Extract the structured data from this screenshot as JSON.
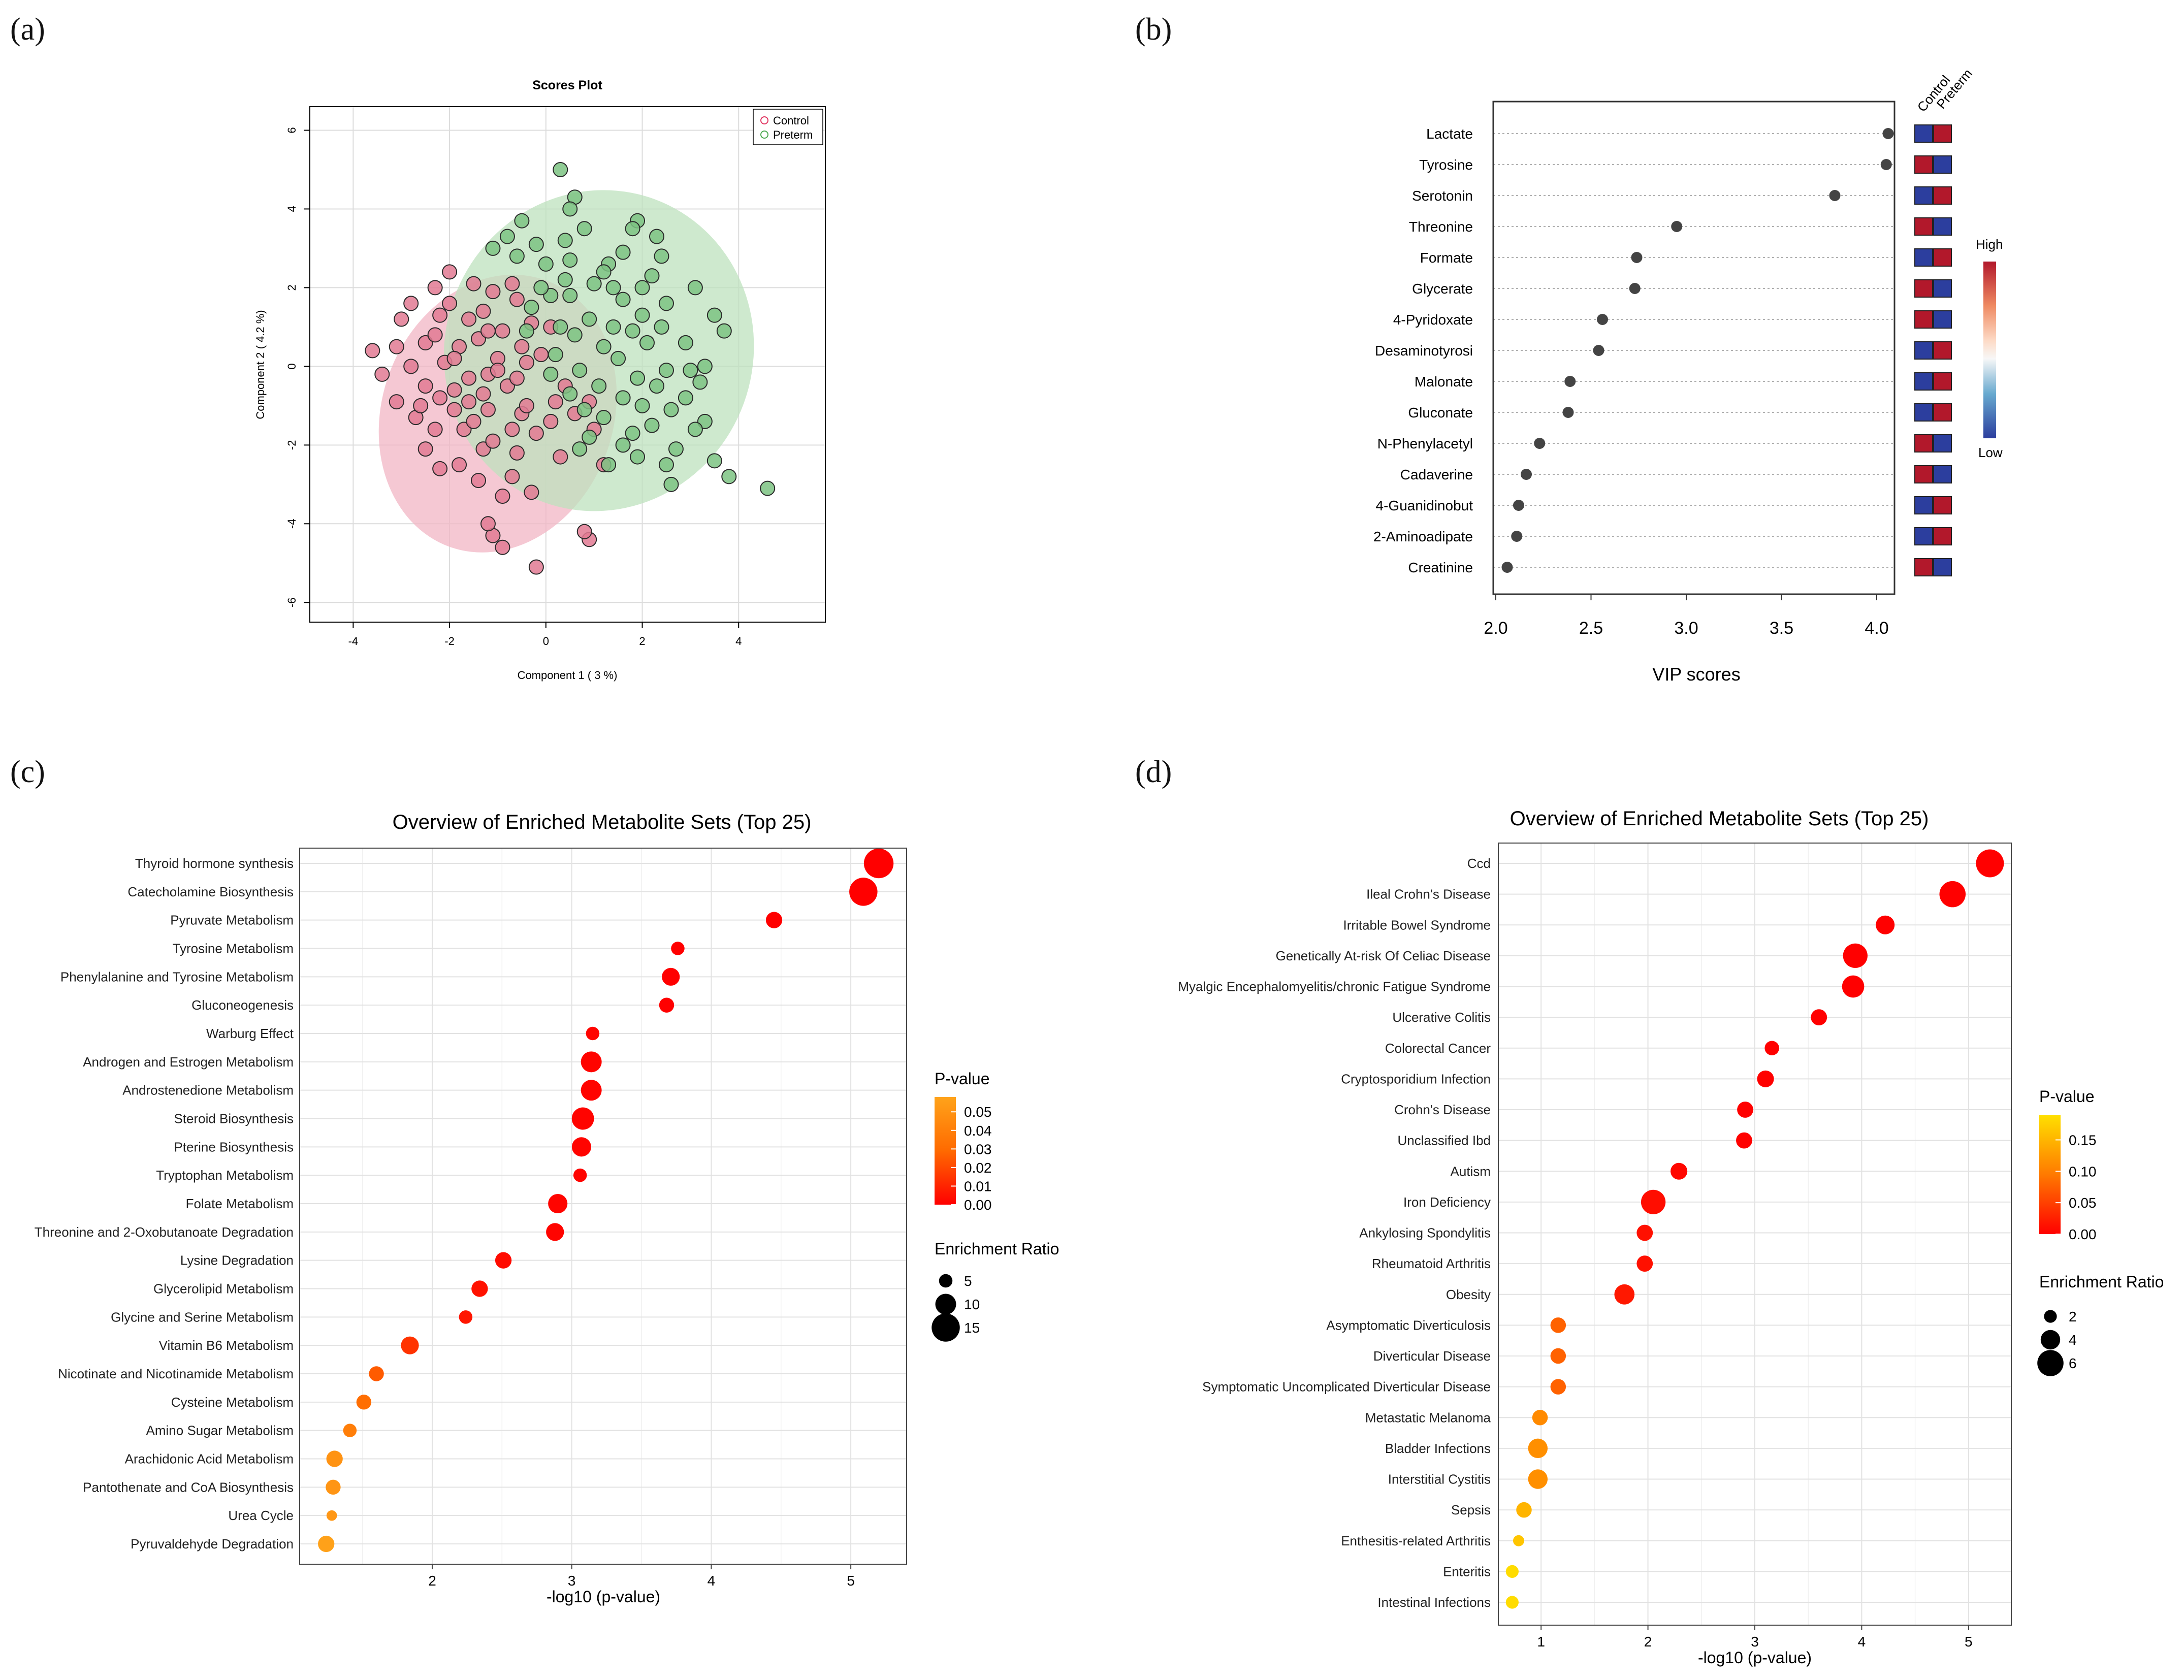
{
  "panel_labels": {
    "a": "(a)",
    "b": "(b)",
    "c": "(c)",
    "d": "(d)"
  },
  "colors": {
    "control_fill": "#e27a93",
    "control_ellipse": "#f2b6c4",
    "control_marker": "#e0325e",
    "preterm_fill": "#7cc383",
    "preterm_ellipse": "#bde2bd",
    "preterm_marker": "#4aa84e",
    "vip_point": "#444444",
    "heat_high": "#b2182b",
    "heat_low": "#2c3e9e",
    "grid": "#dcdcdc",
    "axis": "#000000"
  },
  "chart_data": [
    {
      "id": "a",
      "type": "scatter",
      "title": "Scores Plot",
      "xlabel": "Component 1 ( 3 %)",
      "ylabel": "Component 2 ( 4.2 %)",
      "xlim": [
        -4.9,
        5.8
      ],
      "ylim": [
        -6.5,
        6.6
      ],
      "xticks": [
        -4,
        -2,
        0,
        2,
        4
      ],
      "yticks": [
        -6,
        -4,
        -2,
        0,
        2,
        4,
        6
      ],
      "legend": [
        "Control",
        "Preterm"
      ],
      "ellipses": [
        {
          "group": "Control",
          "center": [
            -1.0,
            -1.2
          ],
          "semi_axes": [
            3.6,
            2.4
          ],
          "angle": 70
        },
        {
          "group": "Preterm",
          "center": [
            1.1,
            0.4
          ],
          "semi_axes": [
            4.1,
            3.2
          ],
          "angle": 70
        }
      ],
      "series": [
        {
          "name": "Control",
          "points": [
            [
              -0.2,
              -5.1
            ],
            [
              -0.9,
              -4.6
            ],
            [
              -1.1,
              -4.3
            ],
            [
              -1.2,
              -4.0
            ],
            [
              0.9,
              -4.4
            ],
            [
              0.8,
              -4.2
            ],
            [
              -0.9,
              -3.3
            ],
            [
              -0.3,
              -3.2
            ],
            [
              -1.4,
              -2.9
            ],
            [
              -2.2,
              -2.6
            ],
            [
              -0.7,
              -2.8
            ],
            [
              -1.8,
              -2.5
            ],
            [
              -0.6,
              -2.2
            ],
            [
              -1.3,
              -2.1
            ],
            [
              0.3,
              -2.3
            ],
            [
              1.2,
              -2.5
            ],
            [
              -2.5,
              -2.1
            ],
            [
              -1.1,
              -1.9
            ],
            [
              -1.7,
              -1.6
            ],
            [
              -2.3,
              -1.6
            ],
            [
              -0.7,
              -1.6
            ],
            [
              -1.5,
              -1.4
            ],
            [
              -0.2,
              -1.7
            ],
            [
              0.1,
              -1.4
            ],
            [
              -2.7,
              -1.3
            ],
            [
              -1.9,
              -1.1
            ],
            [
              -1.2,
              -1.1
            ],
            [
              -0.5,
              -1.2
            ],
            [
              -1.6,
              -0.9
            ],
            [
              -2.2,
              -0.8
            ],
            [
              -0.4,
              -1.0
            ],
            [
              -3.1,
              -0.9
            ],
            [
              -1.9,
              -0.6
            ],
            [
              -1.3,
              -0.7
            ],
            [
              -2.5,
              -0.5
            ],
            [
              -0.8,
              -0.5
            ],
            [
              -3.4,
              -0.2
            ],
            [
              -1.6,
              -0.3
            ],
            [
              -2.8,
              0.0
            ],
            [
              -1.2,
              -0.2
            ],
            [
              -0.6,
              -0.3
            ],
            [
              -3.6,
              0.4
            ],
            [
              -2.1,
              0.1
            ],
            [
              -1.0,
              0.2
            ],
            [
              -3.1,
              0.5
            ],
            [
              -2.5,
              0.6
            ],
            [
              -1.8,
              0.5
            ],
            [
              -0.5,
              0.5
            ],
            [
              -2.3,
              0.8
            ],
            [
              -1.4,
              0.7
            ],
            [
              -0.9,
              0.9
            ],
            [
              -3.0,
              1.2
            ],
            [
              -2.2,
              1.3
            ],
            [
              -1.6,
              1.2
            ],
            [
              -0.3,
              1.1
            ],
            [
              -2.8,
              1.6
            ],
            [
              -2.0,
              1.6
            ],
            [
              -1.3,
              1.4
            ],
            [
              -0.6,
              1.7
            ],
            [
              -2.3,
              2.0
            ],
            [
              -1.1,
              1.9
            ],
            [
              -2.0,
              2.4
            ],
            [
              -0.7,
              2.1
            ],
            [
              -1.5,
              2.1
            ],
            [
              0.1,
              1.0
            ],
            [
              -0.1,
              0.3
            ],
            [
              0.4,
              -0.5
            ],
            [
              0.6,
              -1.2
            ],
            [
              0.9,
              -0.9
            ],
            [
              1.0,
              -1.6
            ],
            [
              0.2,
              -0.9
            ],
            [
              -1.0,
              -0.1
            ],
            [
              -1.9,
              0.2
            ],
            [
              -2.6,
              -1.0
            ],
            [
              -0.4,
              0.1
            ],
            [
              -1.2,
              0.9
            ]
          ]
        },
        {
          "name": "Preterm",
          "points": [
            [
              0.3,
              5.0
            ],
            [
              0.6,
              4.3
            ],
            [
              0.5,
              4.0
            ],
            [
              -0.5,
              3.7
            ],
            [
              -0.8,
              3.3
            ],
            [
              1.9,
              3.7
            ],
            [
              1.8,
              3.5
            ],
            [
              2.3,
              3.3
            ],
            [
              -1.1,
              3.0
            ],
            [
              0.4,
              3.2
            ],
            [
              -0.2,
              3.1
            ],
            [
              1.6,
              2.9
            ],
            [
              2.4,
              2.8
            ],
            [
              -0.6,
              2.8
            ],
            [
              0.5,
              2.7
            ],
            [
              1.3,
              2.6
            ],
            [
              0.0,
              2.6
            ],
            [
              1.2,
              2.4
            ],
            [
              3.1,
              2.0
            ],
            [
              2.0,
              2.0
            ],
            [
              1.4,
              2.0
            ],
            [
              0.1,
              1.8
            ],
            [
              0.5,
              1.8
            ],
            [
              1.6,
              1.7
            ],
            [
              2.5,
              1.6
            ],
            [
              3.5,
              1.3
            ],
            [
              2.0,
              1.3
            ],
            [
              0.9,
              1.2
            ],
            [
              3.7,
              0.9
            ],
            [
              0.3,
              1.0
            ],
            [
              1.8,
              0.9
            ],
            [
              2.9,
              0.6
            ],
            [
              0.6,
              0.8
            ],
            [
              1.2,
              0.5
            ],
            [
              2.1,
              0.6
            ],
            [
              0.2,
              0.3
            ],
            [
              1.5,
              0.2
            ],
            [
              3.3,
              0.0
            ],
            [
              2.5,
              -0.1
            ],
            [
              0.7,
              -0.1
            ],
            [
              1.9,
              -0.3
            ],
            [
              3.2,
              -0.4
            ],
            [
              1.1,
              -0.5
            ],
            [
              2.3,
              -0.5
            ],
            [
              0.5,
              -0.7
            ],
            [
              1.6,
              -0.8
            ],
            [
              2.9,
              -0.8
            ],
            [
              2.0,
              -1.0
            ],
            [
              0.8,
              -1.1
            ],
            [
              2.6,
              -1.1
            ],
            [
              1.2,
              -1.3
            ],
            [
              3.3,
              -1.4
            ],
            [
              2.2,
              -1.5
            ],
            [
              1.8,
              -1.7
            ],
            [
              3.1,
              -1.6
            ],
            [
              0.9,
              -1.8
            ],
            [
              2.7,
              -2.1
            ],
            [
              1.6,
              -2.0
            ],
            [
              3.5,
              -2.4
            ],
            [
              2.5,
              -2.5
            ],
            [
              3.8,
              -2.8
            ],
            [
              2.6,
              -3.0
            ],
            [
              4.6,
              -3.1
            ],
            [
              1.3,
              -2.5
            ],
            [
              0.7,
              -2.1
            ],
            [
              -0.3,
              1.5
            ],
            [
              1.0,
              2.1
            ],
            [
              2.2,
              2.3
            ],
            [
              0.8,
              3.5
            ],
            [
              1.4,
              1.0
            ],
            [
              0.1,
              -0.2
            ],
            [
              2.4,
              1.0
            ],
            [
              -0.1,
              2.0
            ],
            [
              3.0,
              -0.1
            ],
            [
              1.9,
              -2.3
            ],
            [
              -0.4,
              0.9
            ],
            [
              0.4,
              2.2
            ]
          ]
        }
      ]
    },
    {
      "id": "b",
      "type": "dot",
      "xlabel": "VIP scores",
      "xlim": [
        2.0,
        4.0
      ],
      "xticks": [
        2.0,
        2.5,
        3.0,
        3.5,
        4.0
      ],
      "categories": [
        "Lactate",
        "Tyrosine",
        "Serotonin",
        "Threonine",
        "Formate",
        "Glycerate",
        "4-Pyridoxate",
        "Desaminotyrosi",
        "Malonate",
        "Gluconate",
        "N-Phenylacetyl",
        "Cadaverine",
        "4-Guanidinobut",
        "2-Aminoadipate",
        "Creatinine"
      ],
      "values": [
        4.06,
        4.05,
        3.78,
        2.95,
        2.74,
        2.73,
        2.56,
        2.54,
        2.39,
        2.38,
        2.23,
        2.16,
        2.12,
        2.11,
        2.06
      ],
      "heatmap_columns": [
        "Control",
        "Preterm"
      ],
      "heatmap": [
        [
          "low",
          "high"
        ],
        [
          "high",
          "low"
        ],
        [
          "low",
          "high"
        ],
        [
          "high",
          "low"
        ],
        [
          "low",
          "high"
        ],
        [
          "high",
          "low"
        ],
        [
          "high",
          "low"
        ],
        [
          "low",
          "high"
        ],
        [
          "low",
          "high"
        ],
        [
          "low",
          "high"
        ],
        [
          "high",
          "low"
        ],
        [
          "high",
          "low"
        ],
        [
          "low",
          "high"
        ],
        [
          "low",
          "high"
        ],
        [
          "high",
          "low"
        ]
      ],
      "colorbar": {
        "high": "High",
        "low": "Low"
      }
    },
    {
      "id": "c",
      "type": "dot",
      "title": "Overview of Enriched Metabolite Sets (Top 25)",
      "xlabel": "-log10 (p-value)",
      "xlim": [
        1.05,
        5.4
      ],
      "xticks": [
        2,
        3,
        4,
        5
      ],
      "categories": [
        "Thyroid hormone synthesis",
        "Catecholamine Biosynthesis",
        "Pyruvate Metabolism",
        "Tyrosine Metabolism",
        "Phenylalanine and Tyrosine Metabolism",
        "Gluconeogenesis",
        "Warburg Effect",
        "Androgen and Estrogen Metabolism",
        "Androstenedione Metabolism",
        "Steroid Biosynthesis",
        "Pterine Biosynthesis",
        "Tryptophan Metabolism",
        "Folate Metabolism",
        "Threonine and 2-Oxobutanoate Degradation",
        "Lysine Degradation",
        "Glycerolipid Metabolism",
        "Glycine and Serine Metabolism",
        "Vitamin B6 Metabolism",
        "Nicotinate and Nicotinamide Metabolism",
        "Cysteine Metabolism",
        "Amino Sugar Metabolism",
        "Arachidonic Acid Metabolism",
        "Pantothenate and CoA Biosynthesis",
        "Urea Cycle",
        "Pyruvaldehyde Degradation"
      ],
      "x": [
        5.2,
        5.09,
        4.45,
        3.76,
        3.71,
        3.68,
        3.15,
        3.14,
        3.14,
        3.08,
        3.07,
        3.06,
        2.9,
        2.88,
        2.51,
        2.34,
        2.24,
        1.84,
        1.6,
        1.51,
        1.41,
        1.3,
        1.29,
        1.28,
        1.24
      ],
      "enrichment_ratio": [
        16,
        15,
        7,
        5,
        8,
        6,
        5,
        10,
        10,
        11,
        9,
        5,
        9,
        8,
        7,
        7,
        5,
        8,
        6,
        6,
        5,
        7,
        6,
        3,
        7
      ],
      "p_value": [
        0.0,
        0.0,
        0.0,
        0.0,
        0.0,
        0.0,
        0.001,
        0.001,
        0.001,
        0.001,
        0.001,
        0.001,
        0.001,
        0.001,
        0.003,
        0.005,
        0.006,
        0.014,
        0.025,
        0.031,
        0.039,
        0.05,
        0.051,
        0.052,
        0.057
      ],
      "legend": {
        "color_title": "P-value",
        "color_ticks": [
          "0.05",
          "0.04",
          "0.03",
          "0.02",
          "0.01",
          "0.00"
        ],
        "size_title": "Enrichment Ratio",
        "size_ticks": [
          "5",
          "10",
          "15"
        ]
      }
    },
    {
      "id": "d",
      "type": "dot",
      "title": "Overview of Enriched Metabolite Sets (Top 25)",
      "xlabel": "-log10 (p-value)",
      "xlim": [
        0.6,
        5.4
      ],
      "xticks": [
        1,
        2,
        3,
        4,
        5
      ],
      "categories": [
        "Ccd",
        "Ileal Crohn's Disease",
        "Irritable Bowel Syndrome",
        "Genetically At-risk Of Celiac Disease",
        "Myalgic Encephalomyelitis/chronic Fatigue Syndrome",
        "Ulcerative Colitis",
        "Colorectal Cancer",
        "Cryptosporidium Infection",
        "Crohn's Disease",
        "Unclassified Ibd",
        "Autism",
        "Iron Deficiency",
        "Ankylosing Spondylitis",
        "Rheumatoid Arthritis",
        "Obesity",
        "Asymptomatic Diverticulosis",
        "Diverticular Disease",
        "Symptomatic Uncomplicated Diverticular Disease",
        "Metastatic Melanoma",
        "Bladder Infections",
        "Interstitial Cystitis",
        "Sepsis",
        "Enthesitis-related Arthritis",
        "Enteritis",
        "Intestinal Infections"
      ],
      "x": [
        5.2,
        4.85,
        4.22,
        3.94,
        3.92,
        3.6,
        3.16,
        3.1,
        2.91,
        2.9,
        2.29,
        2.05,
        1.97,
        1.97,
        1.78,
        1.16,
        1.16,
        1.16,
        0.99,
        0.97,
        0.97,
        0.84,
        0.79,
        0.73,
        0.73
      ],
      "enrichment_ratio": [
        6.5,
        6.0,
        3.8,
        5.5,
        4.8,
        3.0,
        2.5,
        3.2,
        3.0,
        3.0,
        3.2,
        5.5,
        3.0,
        3.0,
        4.2,
        2.8,
        2.8,
        2.8,
        2.8,
        4.0,
        4.0,
        2.8,
        1.5,
        2.0,
        2.0
      ],
      "p_value": [
        0.0,
        0.0,
        0.0,
        0.0,
        0.0,
        0.0,
        0.001,
        0.001,
        0.001,
        0.001,
        0.005,
        0.009,
        0.011,
        0.011,
        0.017,
        0.069,
        0.069,
        0.069,
        0.102,
        0.107,
        0.107,
        0.145,
        0.162,
        0.186,
        0.186
      ],
      "legend": {
        "color_title": "P-value",
        "color_ticks": [
          "0.15",
          "0.10",
          "0.05",
          "0.00"
        ],
        "size_title": "Enrichment Ratio",
        "size_ticks": [
          "2",
          "4",
          "6"
        ]
      }
    }
  ]
}
